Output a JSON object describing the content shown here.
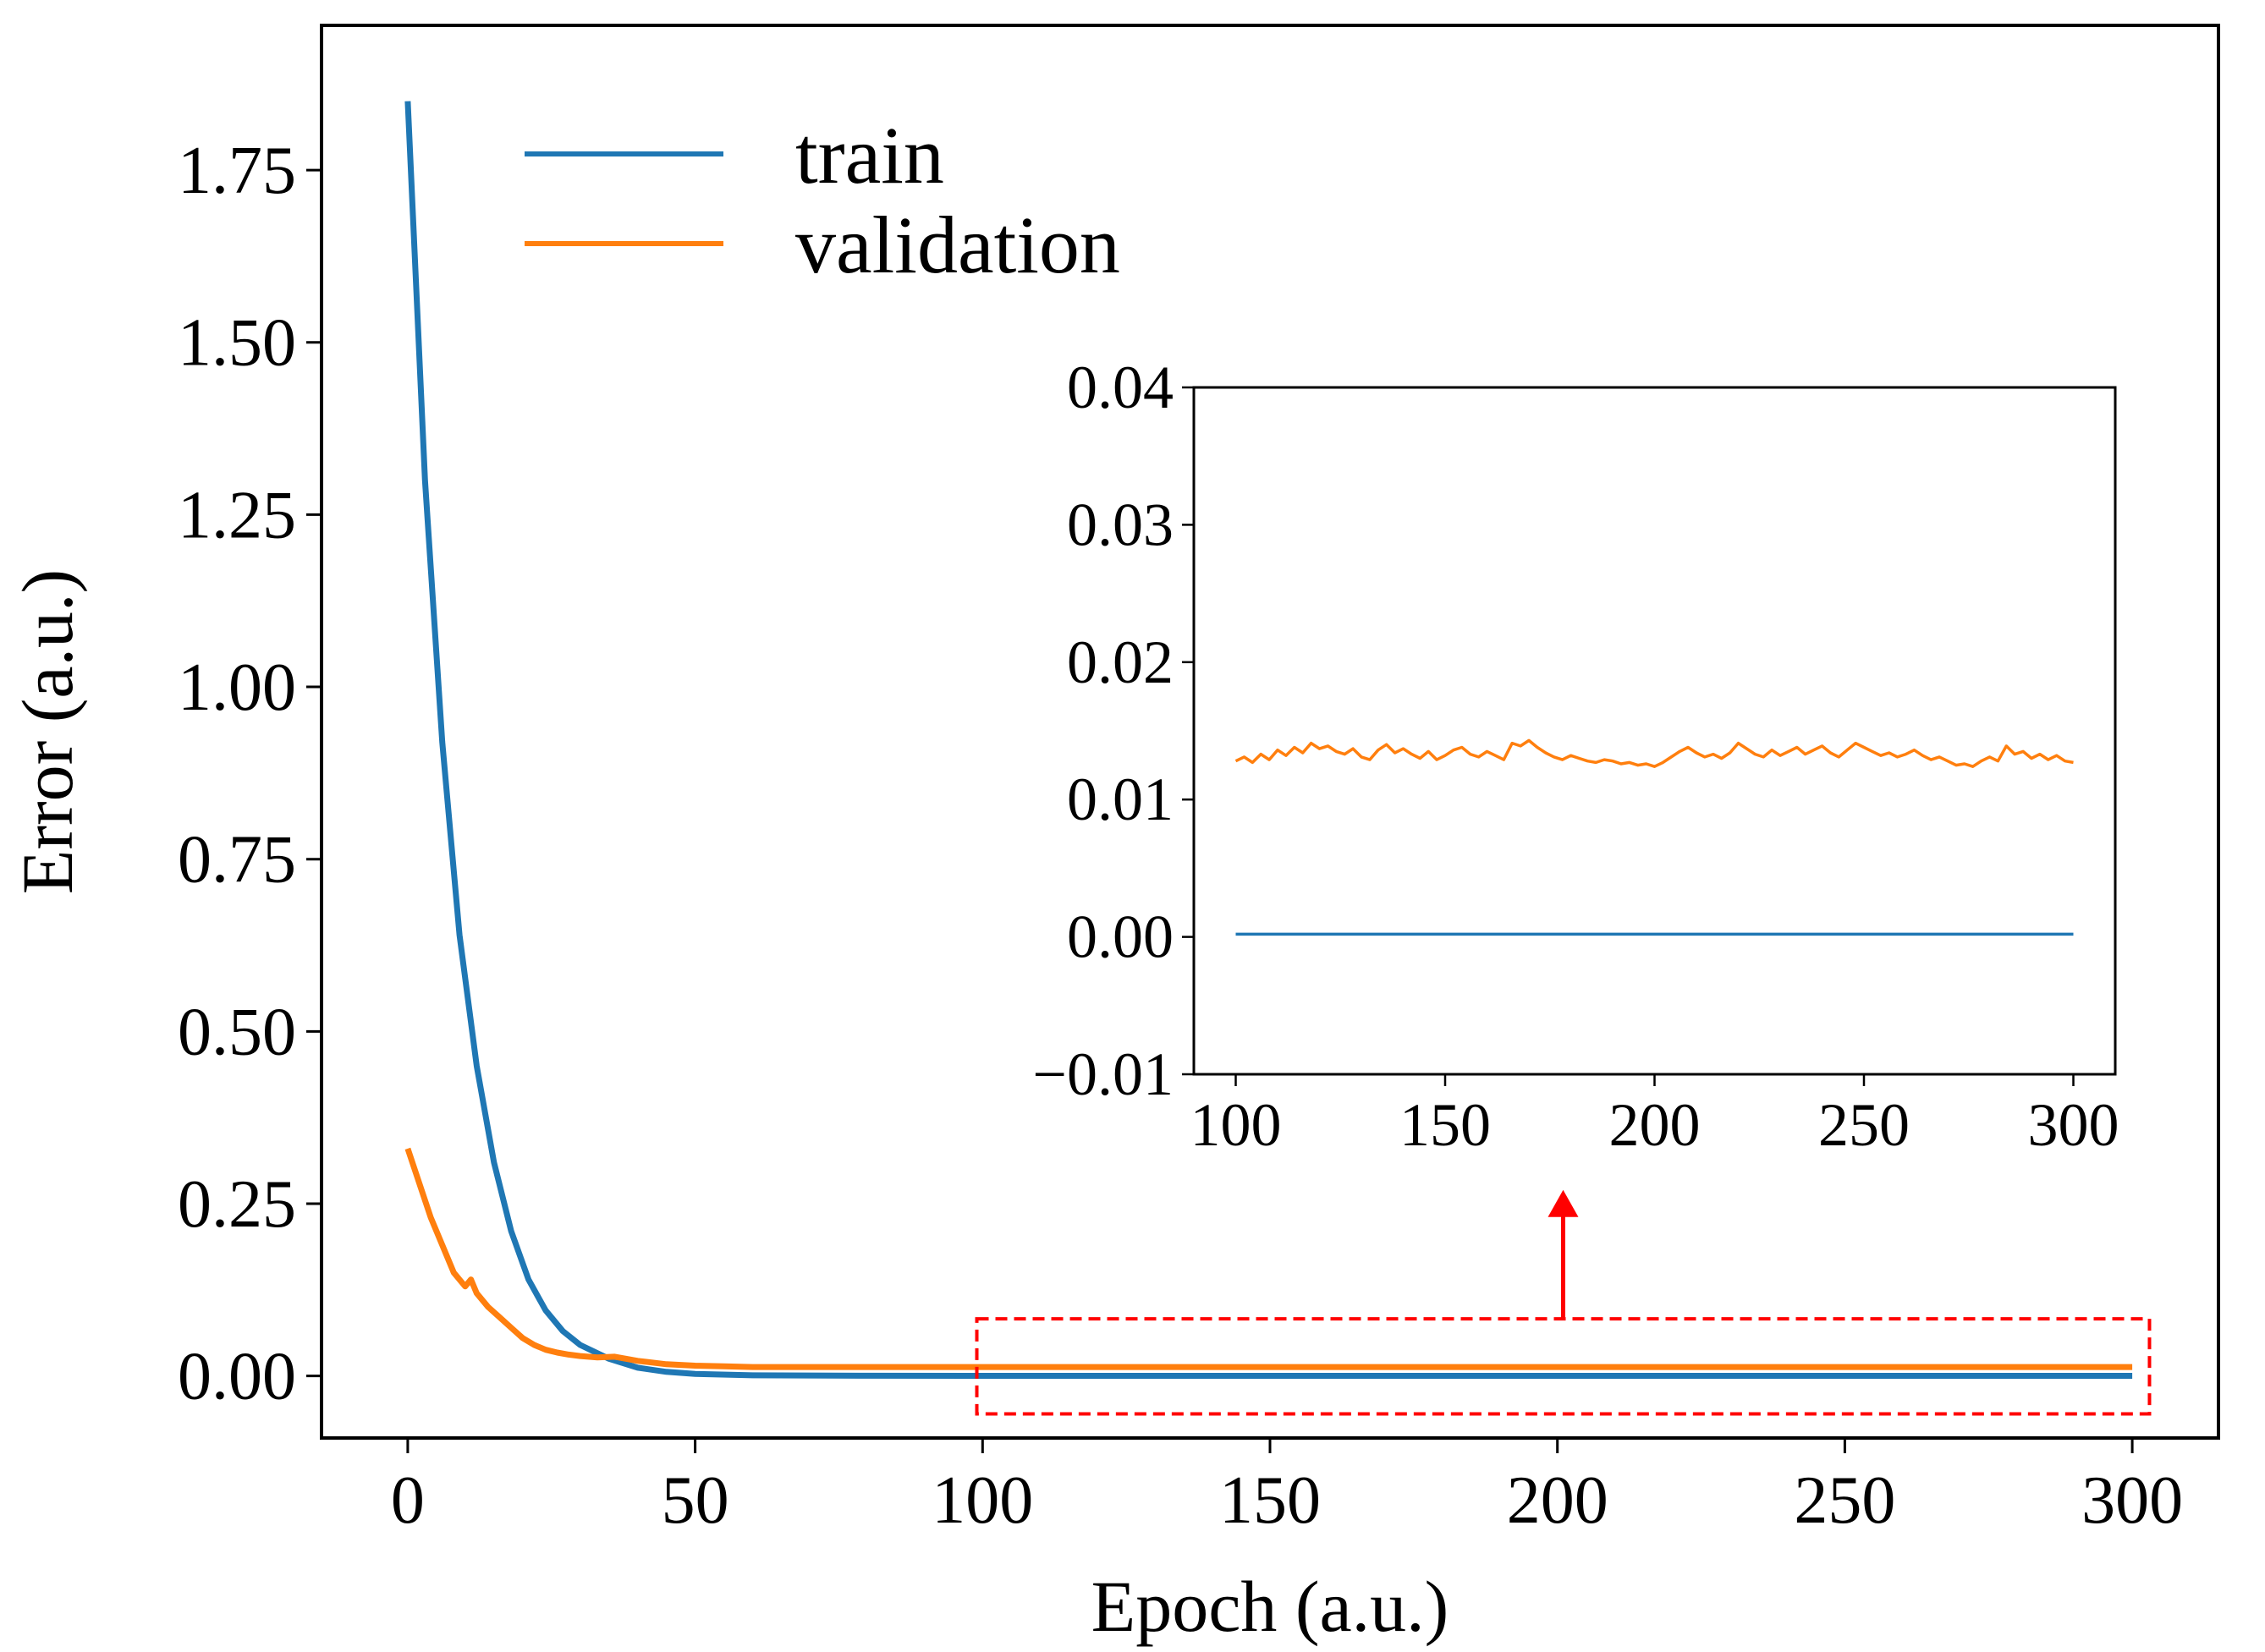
{
  "chart_data": [
    {
      "type": "line",
      "title": "",
      "xlabel": "Epoch (a.u.)",
      "ylabel": "Error (a.u.)",
      "xlim": [
        -15,
        315
      ],
      "ylim": [
        -0.09,
        1.96
      ],
      "xticks": [
        0,
        50,
        100,
        150,
        200,
        250,
        300
      ],
      "xtick_labels": [
        "0",
        "50",
        "100",
        "150",
        "200",
        "250",
        "300"
      ],
      "yticks": [
        0.0,
        0.25,
        0.5,
        0.75,
        1.0,
        1.25,
        1.5,
        1.75
      ],
      "ytick_labels": [
        "0.00",
        "0.25",
        "0.50",
        "0.75",
        "1.00",
        "1.25",
        "1.50",
        "1.75"
      ],
      "grid": false,
      "legend_position": "top-left",
      "series": [
        {
          "name": "train",
          "color": "#1f77b4",
          "x": [
            0,
            3,
            6,
            9,
            12,
            15,
            18,
            21,
            24,
            27,
            30,
            35,
            40,
            45,
            50,
            60,
            80,
            100,
            150,
            200,
            250,
            300
          ],
          "y": [
            1.85,
            1.3,
            0.92,
            0.64,
            0.45,
            0.31,
            0.21,
            0.14,
            0.095,
            0.065,
            0.045,
            0.025,
            0.012,
            0.006,
            0.003,
            0.001,
            0.0003,
            0.0002,
            0.0002,
            0.0002,
            0.0002,
            0.0002
          ]
        },
        {
          "name": "validation",
          "color": "#ff7f0e",
          "x": [
            0,
            2,
            4,
            6,
            8,
            10,
            11,
            12,
            14,
            16,
            18,
            20,
            22,
            24,
            26,
            28,
            30,
            33,
            36,
            40,
            45,
            50,
            55,
            60,
            70,
            80,
            90,
            100,
            150,
            200,
            250,
            300
          ],
          "y": [
            0.33,
            0.28,
            0.23,
            0.19,
            0.15,
            0.13,
            0.14,
            0.12,
            0.1,
            0.085,
            0.07,
            0.055,
            0.045,
            0.038,
            0.034,
            0.031,
            0.029,
            0.027,
            0.028,
            0.022,
            0.017,
            0.015,
            0.014,
            0.013,
            0.013,
            0.013,
            0.013,
            0.013,
            0.013,
            0.013,
            0.013,
            0.013
          ]
        }
      ],
      "annotations": [
        {
          "type": "dashed-rectangle",
          "color": "#ff0000",
          "x_range": [
            99,
            303
          ],
          "y_range": [
            -0.055,
            0.083
          ],
          "meaning": "zoomed region shown in inset"
        },
        {
          "type": "arrow",
          "color": "#ff0000",
          "from": [
            201,
            0.083
          ],
          "to": [
            201,
            0.27
          ],
          "meaning": "points to inset"
        }
      ]
    },
    {
      "type": "line",
      "title": "",
      "xlabel": "",
      "ylabel": "",
      "xlim": [
        90,
        310
      ],
      "ylim": [
        -0.01,
        0.04
      ],
      "xticks": [
        100,
        150,
        200,
        250,
        300
      ],
      "xtick_labels": [
        "100",
        "150",
        "200",
        "250",
        "300"
      ],
      "yticks": [
        -0.01,
        0.0,
        0.01,
        0.02,
        0.03,
        0.04
      ],
      "ytick_labels": [
        "−0.01",
        "0.00",
        "0.01",
        "0.02",
        "0.03",
        "0.04"
      ],
      "grid": false,
      "series": [
        {
          "name": "train",
          "color": "#1f77b4",
          "x": [
            100,
            150,
            200,
            250,
            300
          ],
          "y": [
            0.0002,
            0.0002,
            0.0002,
            0.0002,
            0.0002
          ]
        },
        {
          "name": "validation",
          "color": "#ff7f0e",
          "x": [
            100,
            102,
            104,
            106,
            108,
            110,
            112,
            114,
            116,
            118,
            120,
            122,
            124,
            126,
            128,
            130,
            132,
            134,
            136,
            138,
            140,
            142,
            144,
            146,
            148,
            150,
            152,
            154,
            156,
            158,
            160,
            162,
            164,
            166,
            168,
            170,
            172,
            174,
            176,
            178,
            180,
            182,
            184,
            186,
            188,
            190,
            192,
            194,
            196,
            198,
            200,
            202,
            204,
            206,
            208,
            210,
            212,
            214,
            216,
            218,
            220,
            222,
            224,
            226,
            228,
            230,
            232,
            234,
            236,
            238,
            240,
            242,
            244,
            246,
            248,
            250,
            252,
            254,
            256,
            258,
            260,
            262,
            264,
            266,
            268,
            270,
            272,
            274,
            276,
            278,
            280,
            282,
            284,
            286,
            288,
            290,
            292,
            294,
            296,
            298,
            300
          ],
          "y": [
            0.0128,
            0.0131,
            0.0127,
            0.0133,
            0.0129,
            0.0136,
            0.0132,
            0.0138,
            0.0134,
            0.0141,
            0.0137,
            0.0139,
            0.0135,
            0.0133,
            0.0137,
            0.0131,
            0.0129,
            0.0136,
            0.014,
            0.0134,
            0.0137,
            0.0133,
            0.013,
            0.0135,
            0.0129,
            0.0132,
            0.0136,
            0.0138,
            0.0133,
            0.0131,
            0.0135,
            0.0132,
            0.0129,
            0.0141,
            0.0139,
            0.0143,
            0.0138,
            0.0134,
            0.0131,
            0.0129,
            0.0132,
            0.013,
            0.0128,
            0.0127,
            0.0129,
            0.0128,
            0.0126,
            0.0127,
            0.0125,
            0.0126,
            0.0124,
            0.0127,
            0.0131,
            0.0135,
            0.0138,
            0.0134,
            0.0131,
            0.0133,
            0.013,
            0.0134,
            0.0141,
            0.0137,
            0.0133,
            0.0131,
            0.0136,
            0.0132,
            0.0135,
            0.0138,
            0.0133,
            0.0136,
            0.0139,
            0.0134,
            0.0131,
            0.0136,
            0.0141,
            0.0138,
            0.0135,
            0.0132,
            0.0134,
            0.0131,
            0.0133,
            0.0136,
            0.0132,
            0.0129,
            0.0131,
            0.0128,
            0.0125,
            0.0126,
            0.0124,
            0.0128,
            0.0131,
            0.0128,
            0.0139,
            0.0133,
            0.0135,
            0.013,
            0.0133,
            0.0129,
            0.0132,
            0.0128,
            0.0127
          ]
        }
      ]
    }
  ]
}
